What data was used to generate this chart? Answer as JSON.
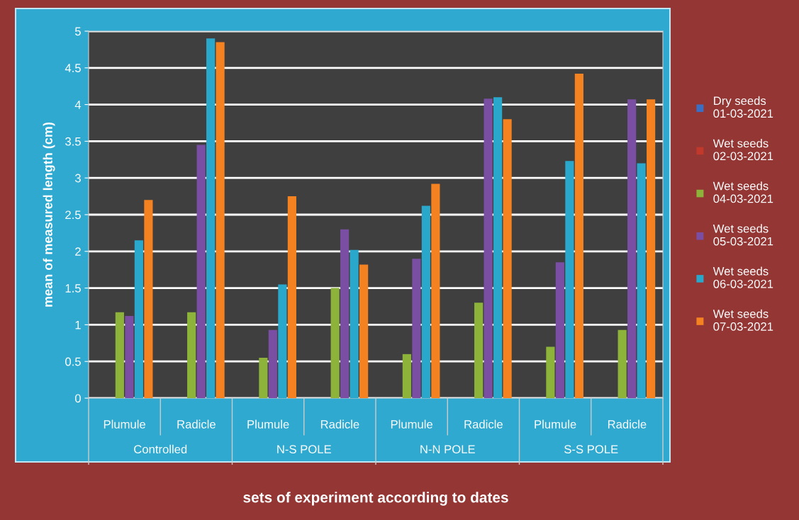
{
  "chart_data": {
    "type": "bar",
    "xlabel": "sets of experiment according to dates",
    "ylabel": "mean of measured length (cm)",
    "categories": [
      "Plumule",
      "Radicle",
      "Plumule",
      "Radicle",
      "Plumule",
      "Radicle",
      "Plumule",
      "Radicle"
    ],
    "annotations": [
      "Controlled",
      "N-S POLE",
      "N-N POLE",
      "S-S POLE"
    ],
    "series": [
      {
        "name": "Dry seeds\n01-03-2021",
        "color": "#3b6fc4",
        "values": [
          0,
          0,
          0,
          0,
          0,
          0,
          0,
          0
        ]
      },
      {
        "name": "Wet seeds\n02-03-2021",
        "color": "#c0392b",
        "values": [
          0,
          0,
          0,
          0,
          0,
          0,
          0,
          0
        ]
      },
      {
        "name": "Wet seeds\n04-03-2021",
        "color": "#8db33a",
        "values": [
          1.17,
          1.17,
          0.55,
          1.5,
          0.6,
          1.3,
          0.7,
          0.93
        ]
      },
      {
        "name": "Wet seeds\n05-03-2021",
        "color": "#7a4fa3",
        "values": [
          1.12,
          3.45,
          0.93,
          2.3,
          1.9,
          4.08,
          1.85,
          4.07
        ]
      },
      {
        "name": "Wet seeds\n06-03-2021",
        "color": "#2aa8cc",
        "values": [
          2.15,
          4.9,
          1.55,
          2.02,
          2.62,
          4.1,
          3.23,
          3.2
        ]
      },
      {
        "name": "Wet seeds\n07-03-2021",
        "color": "#f58220",
        "values": [
          2.7,
          4.85,
          2.75,
          1.82,
          2.92,
          3.8,
          4.42,
          4.07
        ]
      }
    ],
    "ylim": [
      0,
      5
    ],
    "yticks": [
      0,
      0.5,
      1,
      1.5,
      2,
      2.5,
      3,
      3.5,
      4,
      4.5,
      5
    ],
    "grid": "y",
    "legend": "right"
  }
}
